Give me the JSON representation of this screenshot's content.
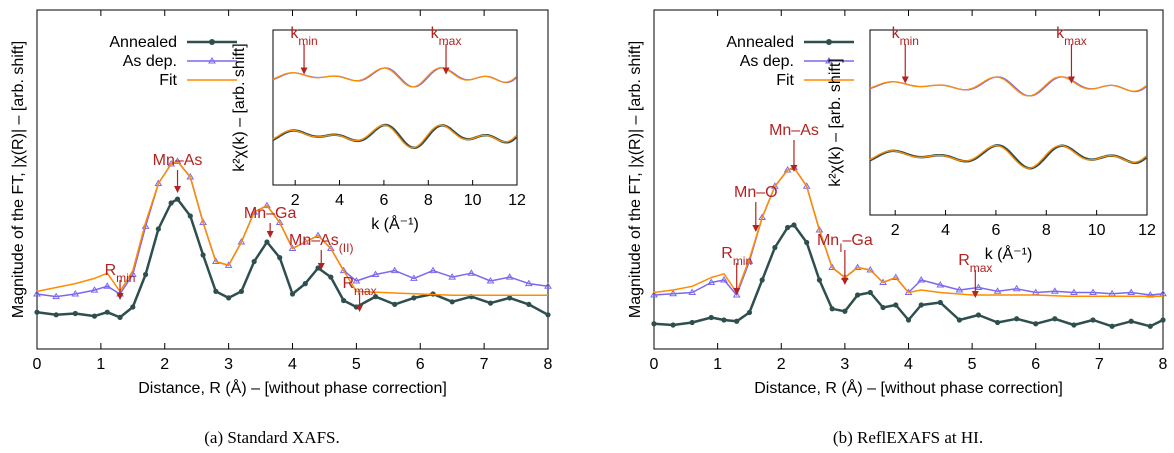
{
  "chart_data": [
    {
      "type": "line",
      "caption": "(a) Standard XAFS.",
      "xlabel": "Distance, R (Å) – [without phase correction]",
      "ylabel": "Magnitude of the FT, |χ(R)| – [arb. shift]",
      "xlim": [
        0,
        8
      ],
      "xticks": [
        "0",
        "1",
        "2",
        "3",
        "4",
        "5",
        "6",
        "7",
        "8"
      ],
      "legend": [
        "Annealed",
        "As dep.",
        "Fit"
      ],
      "legend_position": "top-left",
      "annotations": [
        {
          "label": "Mn–As",
          "x": 2.2
        },
        {
          "label": "Mn–Ga",
          "x": 3.65
        },
        {
          "label": "Mn–As",
          "sub": "(II)",
          "x": 4.45
        },
        {
          "label": "R",
          "sub": "min",
          "x": 1.3
        },
        {
          "label": "R",
          "sub": "max",
          "x": 5.05
        }
      ],
      "series": [
        {
          "name": "Annealed",
          "color": "#2f4f4f",
          "x": [
            0,
            0.3,
            0.6,
            0.9,
            1.1,
            1.3,
            1.5,
            1.7,
            1.9,
            2.1,
            2.2,
            2.4,
            2.6,
            2.8,
            3.0,
            3.2,
            3.4,
            3.6,
            3.8,
            4.0,
            4.2,
            4.4,
            4.6,
            4.8,
            5.0,
            5.3,
            5.6,
            5.9,
            6.2,
            6.5,
            6.8,
            7.1,
            7.4,
            7.7,
            8.0
          ],
          "y": [
            0.06,
            0.04,
            0.05,
            0.03,
            0.06,
            0.02,
            0.1,
            0.35,
            0.7,
            0.9,
            0.93,
            0.8,
            0.5,
            0.22,
            0.17,
            0.22,
            0.45,
            0.6,
            0.48,
            0.2,
            0.28,
            0.4,
            0.33,
            0.15,
            0.1,
            0.18,
            0.12,
            0.17,
            0.2,
            0.14,
            0.18,
            0.13,
            0.17,
            0.12,
            0.04
          ]
        },
        {
          "name": "As dep.",
          "color": "#7b68ee",
          "x": [
            0,
            0.3,
            0.6,
            0.9,
            1.1,
            1.3,
            1.5,
            1.7,
            1.9,
            2.1,
            2.2,
            2.4,
            2.6,
            2.8,
            3.0,
            3.2,
            3.4,
            3.6,
            3.8,
            4.0,
            4.2,
            4.4,
            4.6,
            4.8,
            5.0,
            5.3,
            5.6,
            5.9,
            6.2,
            6.5,
            6.8,
            7.1,
            7.4,
            7.7,
            8.0
          ],
          "y": [
            0.2,
            0.18,
            0.2,
            0.23,
            0.26,
            0.2,
            0.35,
            0.72,
            1.05,
            1.2,
            1.22,
            1.1,
            0.75,
            0.45,
            0.42,
            0.6,
            0.83,
            0.88,
            0.75,
            0.55,
            0.6,
            0.65,
            0.55,
            0.38,
            0.3,
            0.35,
            0.38,
            0.32,
            0.38,
            0.33,
            0.36,
            0.3,
            0.33,
            0.28,
            0.26
          ]
        },
        {
          "name": "Fit",
          "color": "#ff8c00",
          "x": [
            0,
            0.3,
            0.6,
            0.9,
            1.1,
            1.3,
            1.5,
            1.7,
            1.9,
            2.1,
            2.2,
            2.4,
            2.6,
            2.8,
            3.0,
            3.2,
            3.4,
            3.6,
            3.8,
            4.0,
            4.2,
            4.4,
            4.6,
            4.8,
            5.0,
            5.5,
            6.0,
            6.5,
            7.0,
            7.5,
            8.0
          ],
          "y": [
            0.22,
            0.25,
            0.28,
            0.32,
            0.36,
            0.22,
            0.38,
            0.75,
            1.05,
            1.2,
            1.22,
            1.1,
            0.75,
            0.45,
            0.42,
            0.6,
            0.83,
            0.88,
            0.75,
            0.55,
            0.6,
            0.65,
            0.55,
            0.38,
            0.22,
            0.21,
            0.2,
            0.19,
            0.19,
            0.19,
            0.19
          ]
        }
      ],
      "inset": {
        "xlabel": "k (Å⁻¹)",
        "ylabel": "k²χ(k) – [arb. shift]",
        "xlim": [
          1,
          12
        ],
        "xticks": [
          "2",
          "4",
          "6",
          "8",
          "10",
          "12"
        ],
        "annotations": [
          {
            "label": "k",
            "sub": "min",
            "x": 2.4
          },
          {
            "label": "k",
            "sub": "max",
            "x": 8.8
          }
        ]
      }
    },
    {
      "type": "line",
      "caption": "(b) ReflEXAFS at HI.",
      "xlabel": "Distance, R (Å) – [without phase correction]",
      "ylabel": "Magnitude of the FT, |χ(R)| – [arb. shift]",
      "xlim": [
        0,
        8
      ],
      "xticks": [
        "0",
        "1",
        "2",
        "3",
        "4",
        "5",
        "6",
        "7",
        "8"
      ],
      "legend": [
        "Annealed",
        "As dep.",
        "Fit"
      ],
      "legend_position": "top-left",
      "annotations": [
        {
          "label": "Mn–As",
          "x": 2.2
        },
        {
          "label": "Mn–O",
          "x": 1.6
        },
        {
          "label": "R",
          "sub": "min",
          "x": 1.3
        },
        {
          "label": "Mn",
          "sub": "I",
          "tail": "–Ga",
          "x": 3.0
        },
        {
          "label": "R",
          "sub": "max",
          "x": 5.05
        }
      ],
      "series": [
        {
          "name": "Annealed",
          "color": "#2f4f4f",
          "x": [
            0,
            0.3,
            0.6,
            0.9,
            1.1,
            1.3,
            1.5,
            1.7,
            1.9,
            2.1,
            2.2,
            2.4,
            2.6,
            2.8,
            3.0,
            3.2,
            3.4,
            3.6,
            3.8,
            4.0,
            4.2,
            4.5,
            4.8,
            5.1,
            5.4,
            5.7,
            6.0,
            6.3,
            6.6,
            6.9,
            7.2,
            7.5,
            7.8,
            8.0
          ],
          "y": [
            0.05,
            0.04,
            0.06,
            0.1,
            0.08,
            0.07,
            0.14,
            0.4,
            0.66,
            0.82,
            0.84,
            0.7,
            0.4,
            0.17,
            0.15,
            0.28,
            0.3,
            0.18,
            0.2,
            0.08,
            0.2,
            0.22,
            0.08,
            0.12,
            0.06,
            0.09,
            0.05,
            0.09,
            0.04,
            0.08,
            0.03,
            0.07,
            0.03,
            0.08
          ]
        },
        {
          "name": "As dep.",
          "color": "#7b68ee",
          "x": [
            0,
            0.3,
            0.6,
            0.9,
            1.1,
            1.3,
            1.5,
            1.7,
            1.9,
            2.1,
            2.2,
            2.4,
            2.6,
            2.8,
            3.0,
            3.2,
            3.4,
            3.6,
            3.8,
            4.0,
            4.2,
            4.5,
            4.8,
            5.1,
            5.4,
            5.7,
            6.0,
            6.3,
            6.6,
            6.9,
            7.2,
            7.5,
            7.8,
            8.0
          ],
          "y": [
            0.28,
            0.29,
            0.3,
            0.38,
            0.4,
            0.28,
            0.55,
            0.9,
            1.15,
            1.28,
            1.3,
            1.15,
            0.8,
            0.5,
            0.42,
            0.5,
            0.48,
            0.38,
            0.42,
            0.3,
            0.4,
            0.36,
            0.32,
            0.34,
            0.31,
            0.33,
            0.3,
            0.31,
            0.3,
            0.3,
            0.29,
            0.3,
            0.28,
            0.29
          ]
        },
        {
          "name": "Fit",
          "color": "#ff8c00",
          "x": [
            0,
            0.3,
            0.6,
            0.9,
            1.1,
            1.3,
            1.5,
            1.7,
            1.9,
            2.1,
            2.2,
            2.4,
            2.6,
            2.8,
            3.0,
            3.2,
            3.4,
            3.6,
            3.8,
            4.0,
            4.2,
            4.5,
            5.0,
            5.5,
            6.0,
            6.5,
            7.0,
            7.5,
            8.0
          ],
          "y": [
            0.3,
            0.32,
            0.35,
            0.42,
            0.45,
            0.3,
            0.57,
            0.9,
            1.15,
            1.28,
            1.3,
            1.15,
            0.8,
            0.5,
            0.42,
            0.5,
            0.48,
            0.38,
            0.42,
            0.3,
            0.32,
            0.3,
            0.28,
            0.28,
            0.28,
            0.27,
            0.27,
            0.27,
            0.27
          ]
        }
      ],
      "inset": {
        "xlabel": "k (Å⁻¹)",
        "ylabel": "k²χ(k) – [arb. shift]",
        "xlim": [
          1,
          12
        ],
        "xticks": [
          "2",
          "4",
          "6",
          "8",
          "10",
          "12"
        ],
        "annotations": [
          {
            "label": "k",
            "sub": "min",
            "x": 2.4
          },
          {
            "label": "k",
            "sub": "max",
            "x": 9.0
          }
        ]
      }
    }
  ]
}
